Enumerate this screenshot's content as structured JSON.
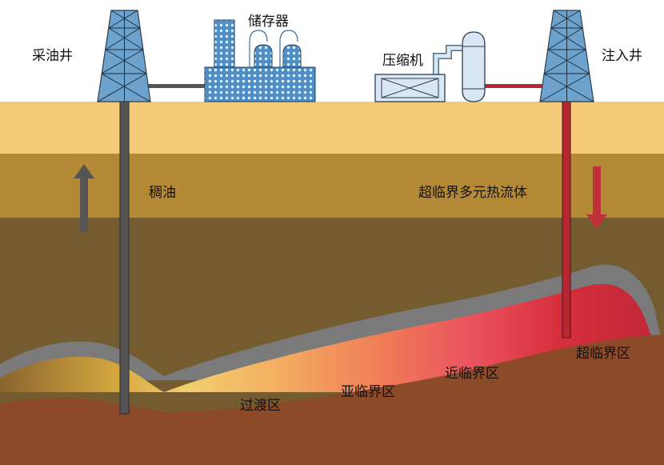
{
  "labels": {
    "production_well": "采油井",
    "storage_tank": "储存器",
    "compressor": "压缩机",
    "injection_well": "注入井",
    "heavy_oil": "稠油",
    "fluid": "超临界多元热流体",
    "transition_zone": "过渡区",
    "subcritical_zone": "亚临界区",
    "near_critical_zone": "近临界区",
    "supercritical_zone": "超临界区"
  },
  "colors": {
    "surface_layer": "#f4c977",
    "middle_layer": "#b58a37",
    "deep_layer": "#745c30",
    "cap_rock": "#7a7a7a",
    "bedrock": "#8c4a28",
    "derrick": "#6ca2cc",
    "storage_pattern": "#4e8ec7",
    "production_pipe": "#555555",
    "injection_pipe": "#b72731",
    "heavy_oil_arrow": "#555555",
    "fluid_arrow": "#c0303a",
    "gradient_stops": [
      "#8a6530",
      "#d6a83e",
      "#f1cf6c",
      "#f3ad62",
      "#f07b55",
      "#eb5660",
      "#d82f3d",
      "#bf2636"
    ]
  }
}
